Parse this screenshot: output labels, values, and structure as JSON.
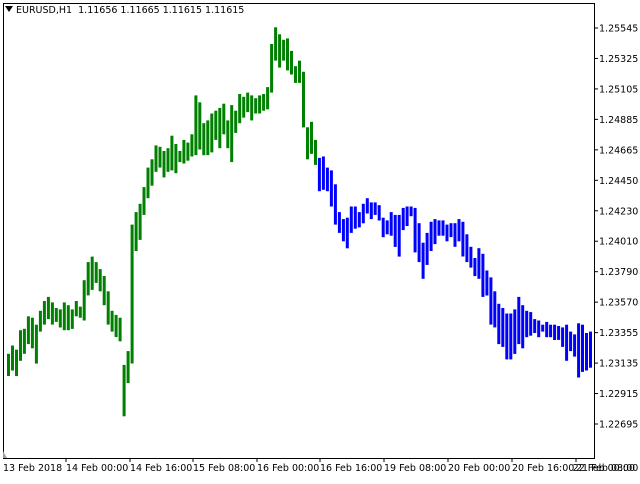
{
  "chart_data": {
    "type": "bar",
    "subtype": "ohlc-bars",
    "symbol": "EURUSD",
    "timeframe": "H1",
    "title": "EURUSD,H1",
    "ohlc_text": "1.11656 1.11665 1.11615 1.11615",
    "colors": {
      "up": "#008000",
      "down": "#0000ff",
      "axis": "#000000",
      "background": "#ffffff"
    },
    "ylim": [
      1.2262,
      1.2573
    ],
    "y_ticks": [
      "1.25545",
      "1.25325",
      "1.25105",
      "1.24885",
      "1.24665",
      "1.24450",
      "1.24230",
      "1.24010",
      "1.23790",
      "1.23570",
      "1.23355",
      "1.23135",
      "1.22915",
      "1.22695"
    ],
    "x_ticks": [
      "13 Feb 2018",
      "14 Feb 00:00",
      "14 Feb 16:00",
      "15 Feb 08:00",
      "16 Feb 00:00",
      "16 Feb 16:00",
      "19 Feb 08:00",
      "20 Feb 00:00",
      "20 Feb 16:00",
      "21 Feb 08:00",
      "22 Feb 00:00"
    ],
    "bars_up": [
      [
        1.232,
        1.2304
      ],
      [
        1.2326,
        1.2308
      ],
      [
        1.2323,
        1.2304
      ],
      [
        1.2337,
        1.2315
      ],
      [
        1.2338,
        1.232
      ],
      [
        1.2347,
        1.2327
      ],
      [
        1.2346,
        1.2324
      ],
      [
        1.2341,
        1.2313
      ],
      [
        1.2351,
        1.2336
      ],
      [
        1.2358,
        1.2341
      ],
      [
        1.2361,
        1.2345
      ],
      [
        1.2357,
        1.2341
      ],
      [
        1.2353,
        1.2343
      ],
      [
        1.2352,
        1.2339
      ],
      [
        1.2357,
        1.2337
      ],
      [
        1.2355,
        1.2337
      ],
      [
        1.2352,
        1.2338
      ],
      [
        1.2358,
        1.2347
      ],
      [
        1.2354,
        1.2346
      ],
      [
        1.2373,
        1.2344
      ],
      [
        1.2386,
        1.2362
      ],
      [
        1.239,
        1.2366
      ],
      [
        1.2386,
        1.2371
      ],
      [
        1.2381,
        1.2365
      ],
      [
        1.2376,
        1.2355
      ],
      [
        1.2365,
        1.2341
      ],
      [
        1.2351,
        1.2336
      ],
      [
        1.2348,
        1.2332
      ],
      [
        1.2346,
        1.2329
      ],
      [
        1.2312,
        1.2275
      ],
      [
        1.2322,
        1.2299
      ],
      [
        1.2413,
        1.2313
      ],
      [
        1.2422,
        1.2394
      ],
      [
        1.2428,
        1.2402
      ],
      [
        1.244,
        1.242
      ],
      [
        1.2454,
        1.2432
      ],
      [
        1.246,
        1.2441
      ],
      [
        1.247,
        1.2451
      ],
      [
        1.2469,
        1.2454
      ],
      [
        1.2466,
        1.2447
      ],
      [
        1.2468,
        1.2451
      ],
      [
        1.2477,
        1.2452
      ],
      [
        1.2471,
        1.245
      ],
      [
        1.2466,
        1.2458
      ],
      [
        1.2474,
        1.2457
      ],
      [
        1.2472,
        1.2459
      ],
      [
        1.2478,
        1.2462
      ],
      [
        1.2506,
        1.2463
      ],
      [
        1.2501,
        1.2467
      ],
      [
        1.2486,
        1.2463
      ],
      [
        1.2488,
        1.2463
      ],
      [
        1.2493,
        1.2465
      ],
      [
        1.2495,
        1.2474
      ],
      [
        1.2497,
        1.2468
      ],
      [
        1.25,
        1.2478
      ],
      [
        1.2488,
        1.2468
      ],
      [
        1.2499,
        1.2458
      ],
      [
        1.2495,
        1.2479
      ],
      [
        1.2507,
        1.2486
      ],
      [
        1.2505,
        1.249
      ],
      [
        1.2508,
        1.2494
      ],
      [
        1.2506,
        1.2488
      ],
      [
        1.2504,
        1.2493
      ],
      [
        1.2506,
        1.2493
      ],
      [
        1.2507,
        1.2495
      ],
      [
        1.2512,
        1.2496
      ],
      [
        1.2543,
        1.2508
      ],
      [
        1.2555,
        1.2531
      ],
      [
        1.255,
        1.2526
      ],
      [
        1.2546,
        1.2531
      ],
      [
        1.2547,
        1.2524
      ],
      [
        1.2538,
        1.2521
      ],
      [
        1.2527,
        1.2515
      ],
      [
        1.2531,
        1.2515
      ],
      [
        1.2523,
        1.2483
      ],
      [
        1.2483,
        1.246
      ],
      [
        1.2487,
        1.2464
      ],
      [
        1.2474,
        1.2456
      ]
    ],
    "bars_down": [
      [
        1.2461,
        1.2437
      ],
      [
        1.2462,
        1.2438
      ],
      [
        1.2454,
        1.2437
      ],
      [
        1.2452,
        1.2426
      ],
      [
        1.2442,
        1.2413
      ],
      [
        1.2422,
        1.2407
      ],
      [
        1.2417,
        1.2401
      ],
      [
        1.2418,
        1.2396
      ],
      [
        1.2426,
        1.2407
      ],
      [
        1.2426,
        1.241
      ],
      [
        1.2422,
        1.2411
      ],
      [
        1.2428,
        1.2414
      ],
      [
        1.2432,
        1.2421
      ],
      [
        1.2429,
        1.2417
      ],
      [
        1.2429,
        1.242
      ],
      [
        1.2427,
        1.2416
      ],
      [
        1.2418,
        1.2404
      ],
      [
        1.2416,
        1.2406
      ],
      [
        1.2422,
        1.2405
      ],
      [
        1.242,
        1.2397
      ],
      [
        1.242,
        1.239
      ],
      [
        1.2425,
        1.2409
      ],
      [
        1.2426,
        1.2412
      ],
      [
        1.2426,
        1.2419
      ],
      [
        1.2425,
        1.2393
      ],
      [
        1.2414,
        1.2386
      ],
      [
        1.24,
        1.2374
      ],
      [
        1.2407,
        1.2384
      ],
      [
        1.2415,
        1.2394
      ],
      [
        1.2417,
        1.2399
      ],
      [
        1.2416,
        1.2405
      ],
      [
        1.2416,
        1.2405
      ],
      [
        1.2413,
        1.2401
      ],
      [
        1.2414,
        1.2404
      ],
      [
        1.2414,
        1.2397
      ],
      [
        1.2417,
        1.2401
      ],
      [
        1.2415,
        1.239
      ],
      [
        1.2406,
        1.2386
      ],
      [
        1.2397,
        1.2382
      ],
      [
        1.2389,
        1.2376
      ],
      [
        1.2396,
        1.2374
      ],
      [
        1.2392,
        1.2361
      ],
      [
        1.238,
        1.2362
      ],
      [
        1.2375,
        1.2341
      ],
      [
        1.2365,
        1.2339
      ],
      [
        1.2356,
        1.2327
      ],
      [
        1.2353,
        1.2325
      ],
      [
        1.2349,
        1.2316
      ],
      [
        1.2349,
        1.2316
      ],
      [
        1.2352,
        1.232
      ],
      [
        1.2361,
        1.2327
      ],
      [
        1.2355,
        1.2324
      ],
      [
        1.2351,
        1.2332
      ],
      [
        1.235,
        1.2333
      ],
      [
        1.2345,
        1.2335
      ],
      [
        1.2344,
        1.2332
      ],
      [
        1.2341,
        1.2336
      ],
      [
        1.2343,
        1.2332
      ],
      [
        1.2341,
        1.2332
      ],
      [
        1.2341,
        1.233
      ],
      [
        1.234,
        1.233
      ],
      [
        1.2339,
        1.2325
      ],
      [
        1.2341,
        1.2315
      ],
      [
        1.2336,
        1.2322
      ],
      [
        1.2334,
        1.2318
      ],
      [
        1.2342,
        1.2303
      ],
      [
        1.2341,
        1.2307
      ],
      [
        1.2335,
        1.2308
      ],
      [
        1.2336,
        1.231
      ]
    ]
  }
}
